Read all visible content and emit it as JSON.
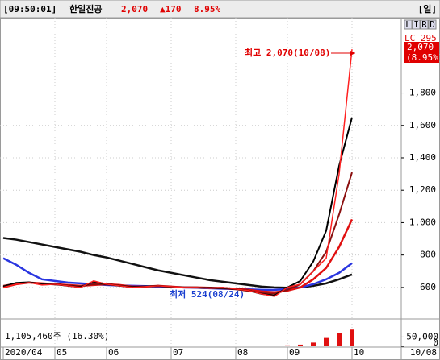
{
  "header": {
    "time": "[09:50:01]",
    "name": "한일진공",
    "price": "2,070",
    "change": "▲170",
    "rate": "8.95%",
    "period": "[일]"
  },
  "side": {
    "buttons": [
      "L",
      "I",
      "R",
      "D"
    ],
    "lc": "LC 295",
    "price_tag": "2,070",
    "rate_tag": "(8.95%)",
    "end_date": "10/08"
  },
  "chart_data": [
    {
      "type": "line",
      "annotations": [
        {
          "text": "최고 2,070(10/08)",
          "color": "#e00000"
        },
        {
          "text": "최저 524(08/24)",
          "color": "#1a3fd0"
        }
      ],
      "categories": [
        "2020/04",
        null,
        null,
        null,
        "05",
        null,
        null,
        null,
        "06",
        null,
        null,
        null,
        null,
        "07",
        null,
        null,
        null,
        null,
        "08",
        null,
        null,
        null,
        "09",
        null,
        null,
        null,
        null,
        "10"
      ],
      "series": [
        {
          "color": "#111111",
          "width": 2.5,
          "values": [
            905,
            895,
            880,
            865,
            850,
            835,
            820,
            800,
            785,
            765,
            745,
            725,
            705,
            690,
            675,
            660,
            645,
            635,
            625,
            615,
            605,
            600,
            598,
            600,
            610,
            625,
            650,
            680
          ]
        },
        {
          "color": "#2a36e0",
          "width": 2.5,
          "values": [
            780,
            740,
            690,
            650,
            640,
            630,
            625,
            620,
            615,
            612,
            610,
            608,
            605,
            603,
            600,
            598,
            595,
            592,
            590,
            588,
            585,
            585,
            590,
            600,
            620,
            650,
            690,
            750
          ]
        },
        {
          "color": "#e01010",
          "width": 2.5,
          "values": [
            600,
            620,
            630,
            625,
            620,
            615,
            610,
            615,
            620,
            615,
            605,
            605,
            610,
            605,
            600,
            600,
            598,
            596,
            592,
            585,
            575,
            570,
            580,
            600,
            650,
            720,
            850,
            1020
          ]
        },
        {
          "color": "#8b1010",
          "width": 2,
          "values": [
            610,
            625,
            630,
            622,
            618,
            612,
            608,
            620,
            618,
            612,
            604,
            606,
            608,
            604,
            600,
            599,
            596,
            594,
            588,
            578,
            565,
            560,
            585,
            620,
            700,
            820,
            1050,
            1310
          ]
        },
        {
          "color": "#000000",
          "width": 2,
          "values": [
            605,
            628,
            632,
            618,
            620,
            610,
            602,
            636,
            620,
            610,
            602,
            606,
            610,
            604,
            600,
            600,
            596,
            598,
            590,
            580,
            560,
            550,
            600,
            640,
            760,
            950,
            1350,
            1650
          ]
        },
        {
          "color": "#ff2020",
          "width": 1.5,
          "values": [
            600,
            620,
            630,
            615,
            620,
            610,
            600,
            640,
            620,
            610,
            600,
            605,
            610,
            605,
            600,
            600,
            595,
            600,
            590,
            580,
            560,
            545,
            600,
            620,
            700,
            780,
            1300,
            2070
          ]
        }
      ],
      "ylim": [
        495,
        2265
      ],
      "yticks": [
        600,
        800,
        {
          "value": 1000,
          "label": "1,000"
        },
        {
          "value": 1200,
          "label": "1,200"
        },
        {
          "value": 1400,
          "label": "1,400"
        },
        {
          "value": 1600,
          "label": "1,600"
        },
        {
          "value": 1800,
          "label": "1,800"
        }
      ],
      "grid": true
    },
    {
      "type": "bar",
      "title": "1,105,460주 (16.30%)",
      "color": "#e01010",
      "values": [
        3000,
        2500,
        2000,
        2000,
        1500,
        1500,
        2000,
        3000,
        2000,
        1500,
        1500,
        1500,
        2000,
        1500,
        1500,
        1500,
        1500,
        1500,
        1500,
        1500,
        2500,
        3000,
        5000,
        9000,
        20000,
        45000,
        70000,
        90000
      ],
      "ylim": [
        0,
        130000
      ],
      "yticks": [
        0,
        {
          "value": 50000,
          "label": "50,000"
        }
      ]
    }
  ]
}
